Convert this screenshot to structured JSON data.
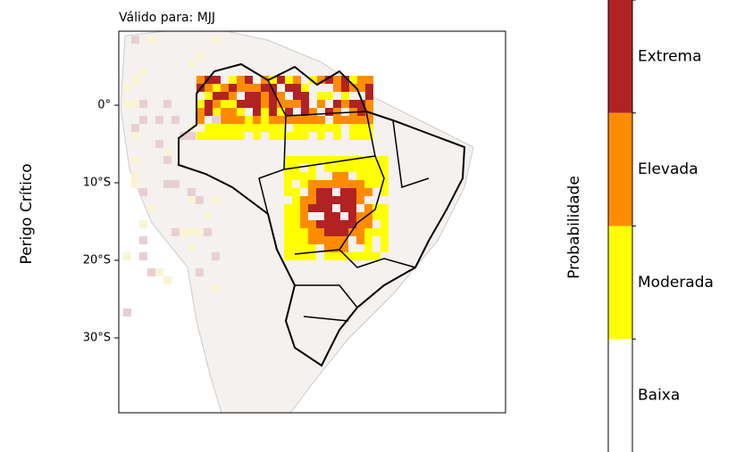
{
  "map": {
    "title": "Válido para: MJJ",
    "ylabel": "Perigo Crítico",
    "lat_ticks": [
      "0°",
      "10°S",
      "20°S",
      "30°S"
    ],
    "colorbar": {
      "label": "Probabilidade",
      "levels": [
        {
          "name": "Extrema",
          "color": "#b22222"
        },
        {
          "name": "Elevada",
          "color": "#ff8c00"
        },
        {
          "name": "Moderada",
          "color": "#ffff00"
        },
        {
          "name": "Baixa",
          "color": "#ffffff"
        }
      ]
    }
  }
}
